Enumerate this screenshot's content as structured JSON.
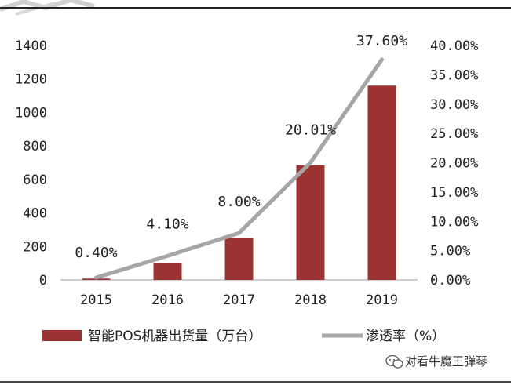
{
  "chart_data": {
    "type": "bar+line",
    "categories": [
      "2015",
      "2016",
      "2017",
      "2018",
      "2019"
    ],
    "series": [
      {
        "name": "智能POS机器出货量（万台）",
        "type": "bar",
        "axis": "left",
        "color": "#9b3333",
        "values": [
          8,
          100,
          250,
          685,
          1160
        ]
      },
      {
        "name": "渗透率（%）",
        "type": "line",
        "axis": "right",
        "color": "#a6a6a6",
        "values": [
          0.4,
          4.1,
          8.0,
          20.01,
          37.6
        ],
        "labels": [
          "0.40%",
          "4.10%",
          "8.00%",
          "20.01%",
          "37.60%"
        ]
      }
    ],
    "y_left": {
      "min": 0,
      "max": 1400,
      "ticks": [
        "0",
        "200",
        "400",
        "600",
        "800",
        "1000",
        "1200",
        "1400"
      ]
    },
    "y_right": {
      "min": 0,
      "max": 40,
      "ticks": [
        "0.00%",
        "5.00%",
        "10.00%",
        "15.00%",
        "20.00%",
        "25.00%",
        "30.00%",
        "35.00%",
        "40.00%"
      ]
    },
    "grid": false,
    "legend": "bottom"
  },
  "watermark": {
    "text": "对看牛魔王弹琴"
  }
}
